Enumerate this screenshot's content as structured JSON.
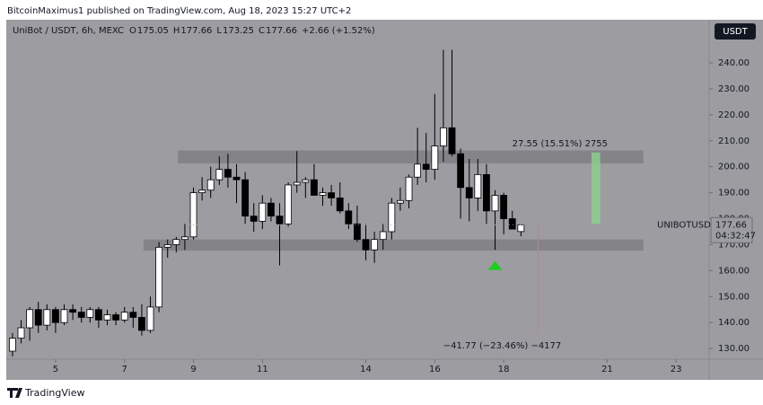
{
  "header": {
    "text": "BitcoinMaximus1 published on TradingView.com, Aug 18, 2023 15:27 UTC+2"
  },
  "footer": {
    "brand": "TradingView"
  },
  "chart_data": {
    "type": "candlestick",
    "symbol": "UniBot / USDT, 6h, MEXC",
    "legend_ohlc": [
      {
        "label": "O",
        "value": 175.05
      },
      {
        "label": "H",
        "value": 177.66
      },
      {
        "label": "L",
        "value": 173.25
      },
      {
        "label": "C",
        "value": 177.66
      }
    ],
    "change": "+2.66 (+1.52%)",
    "currency": "USDT",
    "ticker": "UNIBOTUSDT",
    "last_price": 177.66,
    "countdown": "04:32:47",
    "up_color": "#ffffff",
    "down_color": "#000000",
    "x": [
      3.75,
      4,
      4.25,
      4.5,
      4.75,
      5,
      5.25,
      5.5,
      5.75,
      6,
      6.25,
      6.5,
      6.75,
      7,
      7.25,
      7.5,
      7.75,
      8,
      8.25,
      8.5,
      8.75,
      9,
      9.25,
      9.5,
      9.75,
      10,
      10.25,
      10.5,
      10.75,
      11,
      11.25,
      11.5,
      11.75,
      12,
      12.25,
      12.5,
      12.75,
      13,
      13.25,
      13.5,
      13.75,
      14,
      14.25,
      14.5,
      14.75,
      15,
      15.25,
      15.5,
      15.75,
      16,
      16.25,
      16.5,
      16.75,
      17,
      17.25,
      17.5,
      17.75,
      18,
      18.25,
      18.5
    ],
    "open": [
      129,
      134,
      138,
      145,
      139,
      145,
      140,
      145,
      144,
      142,
      145,
      141,
      143,
      141,
      144,
      142,
      137,
      146,
      169,
      170,
      172,
      173,
      190,
      191,
      195,
      199,
      196,
      195,
      181,
      179,
      186,
      181,
      178,
      193,
      194,
      195,
      189,
      190,
      188,
      183,
      178,
      172,
      168,
      172,
      175,
      186,
      187,
      196,
      201,
      199,
      208,
      215,
      205,
      192,
      188,
      197,
      183,
      189,
      180,
      175.05
    ],
    "high": [
      136,
      141,
      146,
      148,
      147,
      146,
      147,
      147,
      146,
      146,
      146,
      145,
      144,
      146,
      146,
      147,
      150,
      171,
      172,
      173,
      178,
      192,
      196,
      200,
      204,
      205,
      201,
      198,
      186,
      189,
      188,
      186,
      194,
      206,
      196,
      201,
      192,
      193,
      194,
      186,
      185,
      178,
      175,
      178,
      188,
      192,
      197,
      215,
      213,
      228,
      245,
      245,
      207,
      203,
      203,
      201,
      191,
      190,
      183,
      177.66
    ],
    "low": [
      127,
      132,
      133,
      136,
      137,
      136,
      139,
      141,
      140,
      140,
      138,
      139,
      139,
      140,
      138,
      135,
      136,
      144,
      165,
      167,
      168,
      172,
      187,
      188,
      193,
      192,
      186,
      178,
      175,
      176,
      179,
      162,
      177,
      190,
      188,
      190,
      185,
      185,
      182,
      176,
      171,
      164,
      163,
      168,
      172,
      183,
      184,
      193,
      194,
      195,
      202,
      204,
      180,
      179,
      183,
      178,
      168,
      174,
      176,
      173.25
    ],
    "close": [
      134,
      138,
      145,
      139,
      145,
      140,
      145,
      144,
      142,
      145,
      141,
      143,
      141,
      144,
      142,
      137,
      146,
      169,
      170,
      172,
      173,
      190,
      191,
      195,
      199,
      196,
      195,
      181,
      179,
      186,
      181,
      178,
      193,
      194,
      195,
      189,
      190,
      188,
      183,
      178,
      172,
      168,
      172,
      175,
      186,
      187,
      196,
      201,
      199,
      208,
      215,
      205,
      192,
      188,
      197,
      183,
      189,
      180,
      176,
      177.66
    ],
    "xlim": [
      3.57,
      23.96
    ],
    "ylim": [
      125.9,
      256.6
    ],
    "xticks": [
      5,
      7,
      9,
      11,
      14,
      16,
      18,
      21,
      23
    ],
    "yticks": [
      {
        "value": 130,
        "label": "130.00"
      },
      {
        "value": 140,
        "label": "140.00"
      },
      {
        "value": 150,
        "label": "150.00"
      },
      {
        "value": 160,
        "label": "160.00"
      },
      {
        "value": 170,
        "label": "170.00"
      },
      {
        "value": 180,
        "label": "180.00"
      },
      {
        "value": 190,
        "label": "190.00"
      },
      {
        "value": 200,
        "label": "200.00"
      },
      {
        "value": 210,
        "label": "210.00"
      },
      {
        "value": 220,
        "label": "220.00"
      },
      {
        "value": 230,
        "label": "230.00"
      },
      {
        "value": 240,
        "label": "240.00"
      }
    ],
    "zones": [
      {
        "x": [
          8.55,
          22.05
        ],
        "y": [
          201.3,
          206.3
        ]
      },
      {
        "x": [
          7.55,
          22.05
        ],
        "y": [
          167.7,
          172.0
        ]
      }
    ],
    "measures": [
      {
        "x": [
          20.55,
          20.8
        ],
        "y": [
          178,
          205.5
        ],
        "color": "#8fd18f",
        "text": "27.55 (15.51%) 2755"
      },
      {
        "x": [
          19.0,
          19.0
        ],
        "y": [
          178,
          136
        ],
        "color": "#b08a8a",
        "text": "−41.77 (−23.46%) −4177"
      }
    ],
    "marker": {
      "x": 17.75,
      "y": 162,
      "color": "#22cc22"
    }
  }
}
